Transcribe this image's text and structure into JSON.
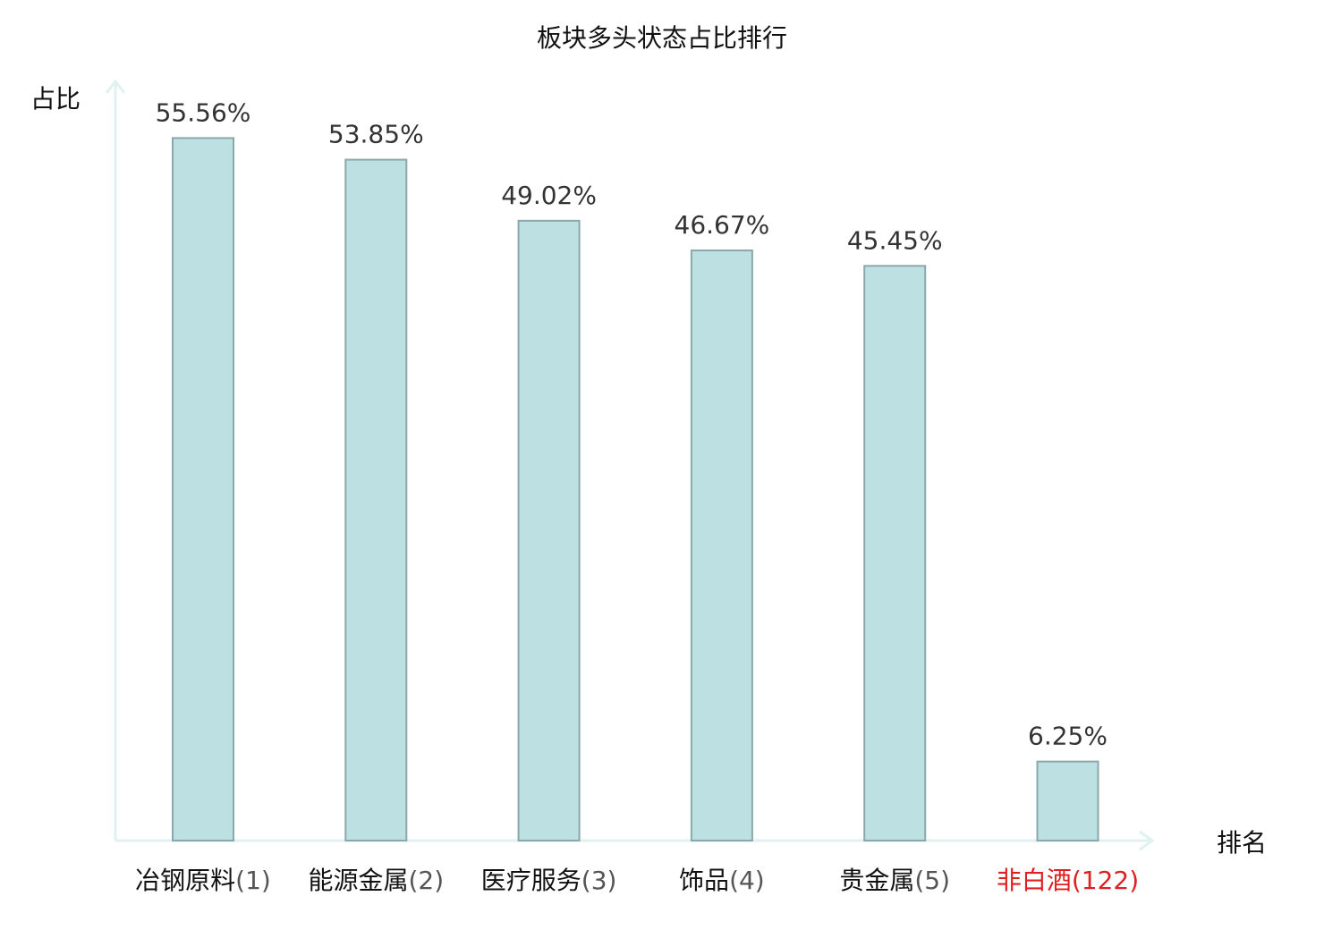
{
  "chart_data": {
    "type": "bar",
    "title": "板块多头状态占比排行",
    "xlabel": "排名",
    "ylabel": "占比",
    "categories": [
      "冶钢原料",
      "能源金属",
      "医疗服务",
      "饰品",
      "贵金属",
      "非白酒"
    ],
    "ranks": [
      "(1)",
      "(2)",
      "(3)",
      "(4)",
      "(5)",
      "(122)"
    ],
    "values": [
      55.56,
      53.85,
      49.02,
      46.67,
      45.45,
      6.25
    ],
    "value_labels": [
      "55.56%",
      "53.85%",
      "49.02%",
      "46.67%",
      "45.45%",
      "6.25%"
    ],
    "highlight_index": 5,
    "ylim": [
      0,
      60
    ],
    "grid": false,
    "colors": {
      "bar_fill": "#bde0e3",
      "bar_stroke": "#8aa8aa",
      "axis": "#dff2ef",
      "highlight": "#e02020"
    }
  }
}
